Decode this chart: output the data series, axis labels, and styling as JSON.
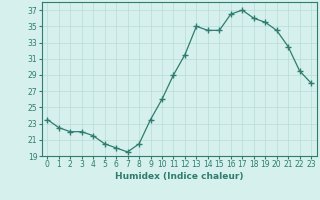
{
  "x": [
    0,
    1,
    2,
    3,
    4,
    5,
    6,
    7,
    8,
    9,
    10,
    11,
    12,
    13,
    14,
    15,
    16,
    17,
    18,
    19,
    20,
    21,
    22,
    23
  ],
  "y": [
    23.5,
    22.5,
    22.0,
    22.0,
    21.5,
    20.5,
    20.0,
    19.5,
    20.5,
    23.5,
    26.0,
    29.0,
    31.5,
    35.0,
    34.5,
    34.5,
    36.5,
    37.0,
    36.0,
    35.5,
    34.5,
    32.5,
    29.5,
    28.0
  ],
  "line_color": "#2e7d6e",
  "marker": "+",
  "marker_size": 4,
  "bg_color": "#d6f0ee",
  "grid_color": "#b8dbd8",
  "xlabel": "Humidex (Indice chaleur)",
  "ylim": [
    19,
    38
  ],
  "xlim": [
    -0.5,
    23.5
  ],
  "yticks": [
    19,
    21,
    23,
    25,
    27,
    29,
    31,
    33,
    35,
    37
  ],
  "xticks": [
    0,
    1,
    2,
    3,
    4,
    5,
    6,
    7,
    8,
    9,
    10,
    11,
    12,
    13,
    14,
    15,
    16,
    17,
    18,
    19,
    20,
    21,
    22,
    23
  ],
  "label_fontsize": 6.5,
  "tick_fontsize": 5.5
}
